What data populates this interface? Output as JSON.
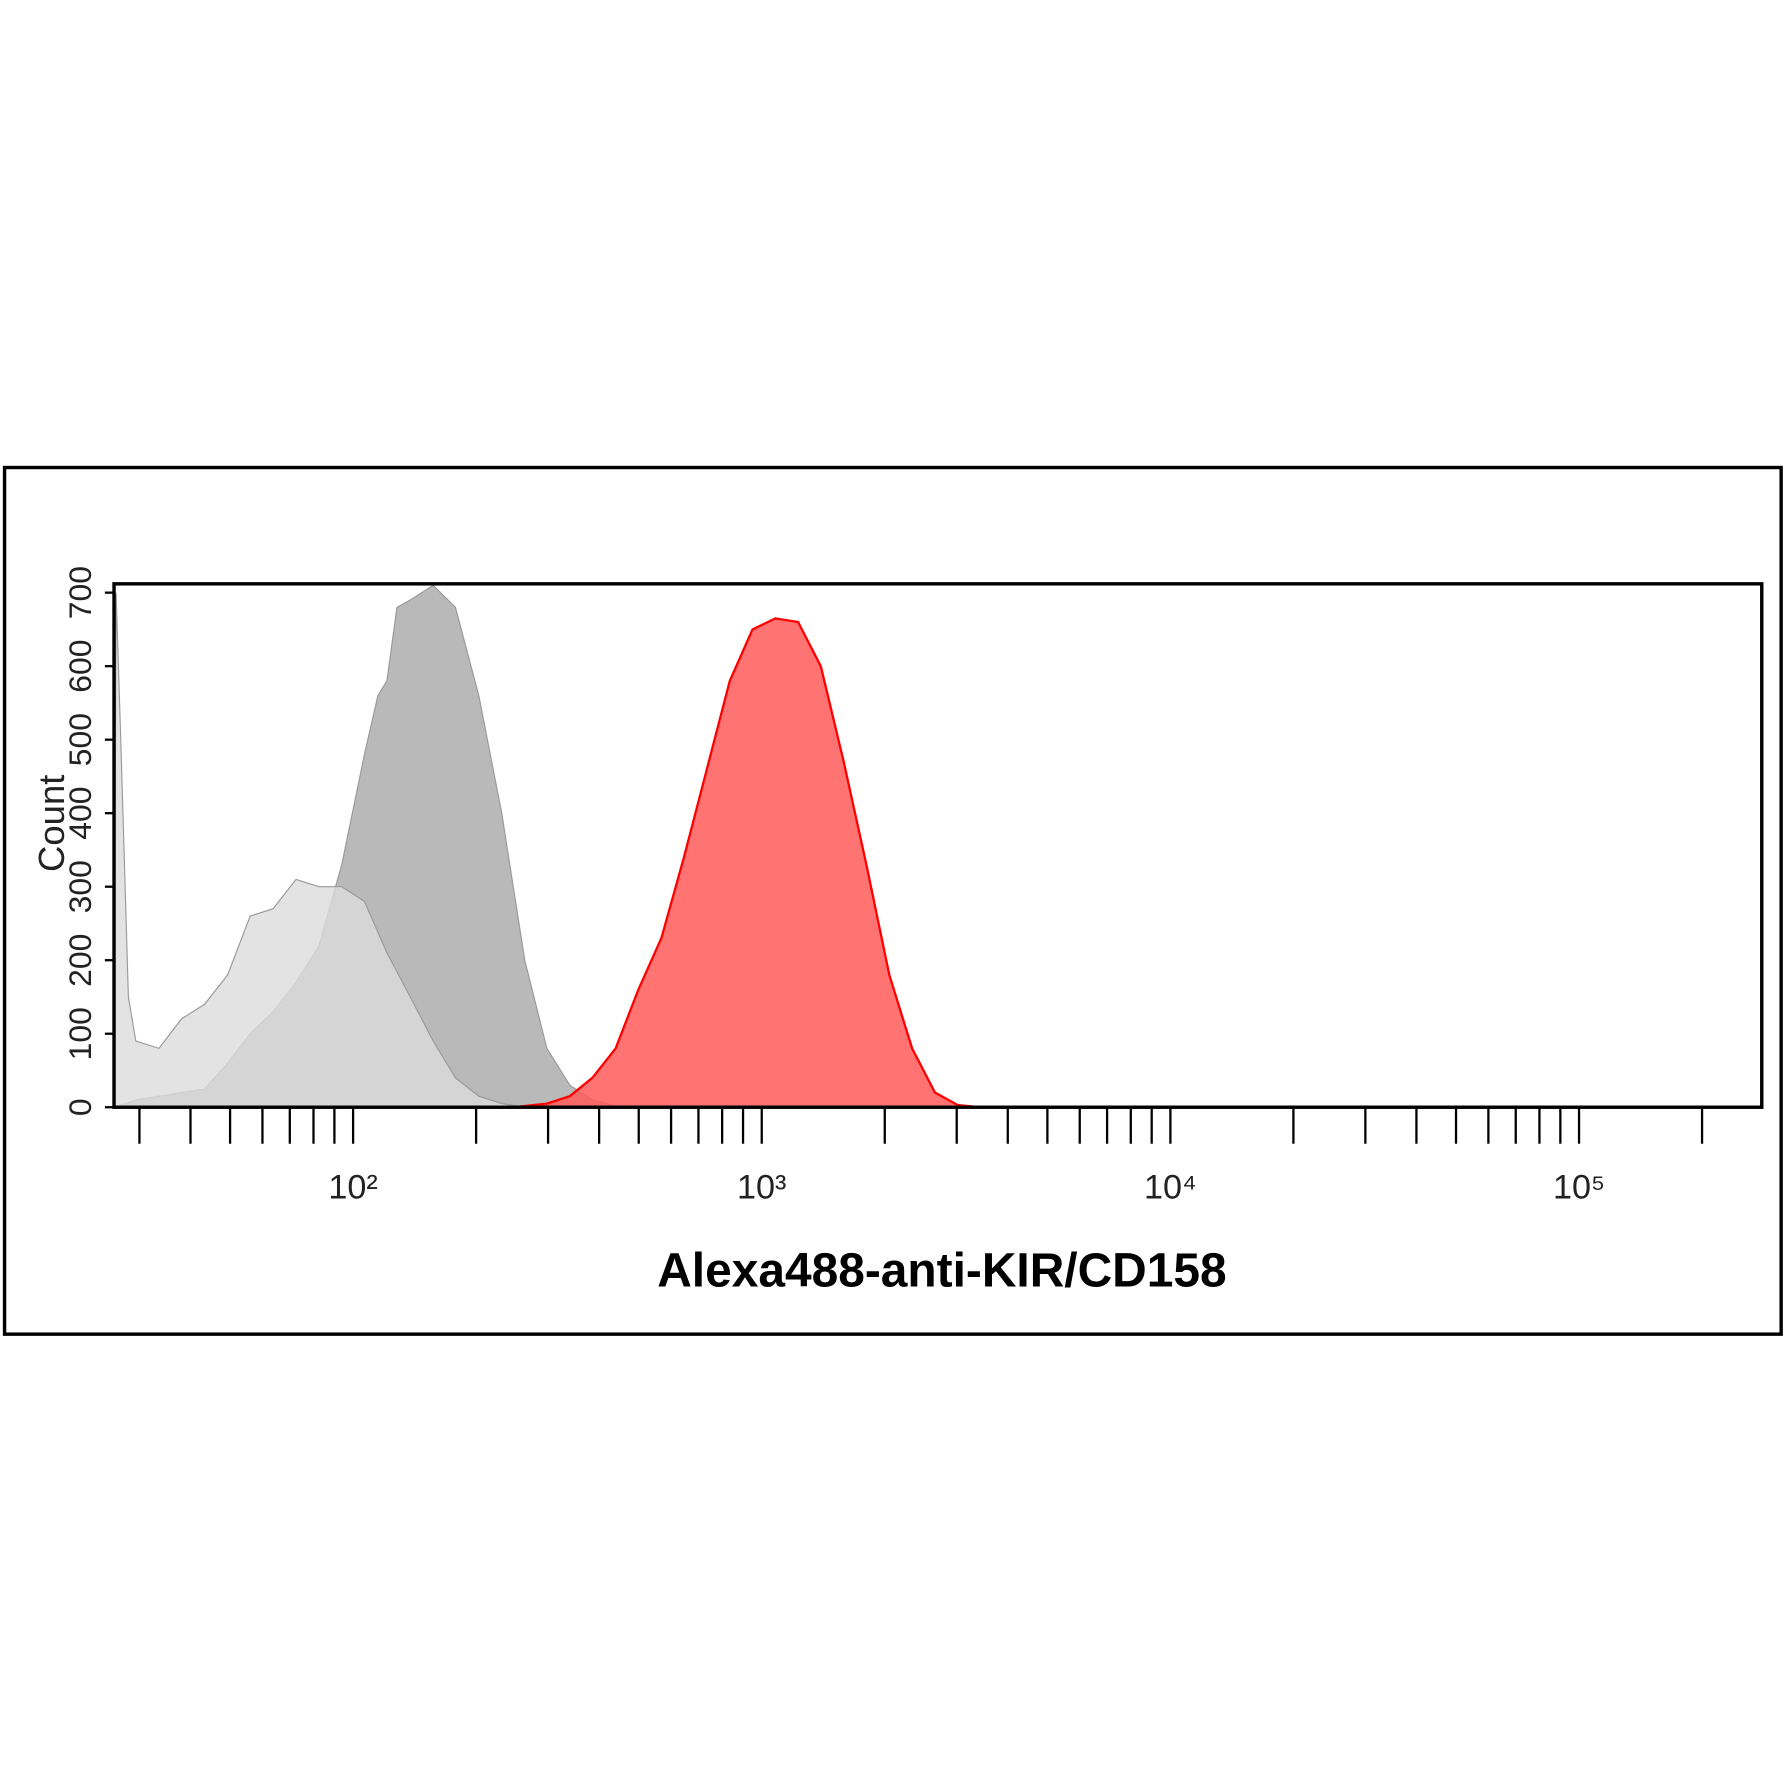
{
  "chart_data": {
    "type": "area",
    "xlabel": "Alexa488-anti-KIR/CD158",
    "ylabel": "Count",
    "xscale": "log",
    "xlim": [
      26,
      280000
    ],
    "ylim": [
      0,
      712
    ],
    "xticks": [
      {
        "value": 100,
        "label": "10²"
      },
      {
        "value": 1000,
        "label": "10³"
      },
      {
        "value": 10000,
        "label": "10⁴"
      },
      {
        "value": 100000,
        "label": "10⁵"
      }
    ],
    "xminorticks": [
      30,
      40,
      50,
      60,
      70,
      80,
      90,
      200,
      300,
      400,
      500,
      600,
      700,
      800,
      900,
      2000,
      3000,
      4000,
      5000,
      6000,
      7000,
      8000,
      9000,
      20000,
      30000,
      40000,
      50000,
      60000,
      70000,
      80000,
      90000,
      200000
    ],
    "yticks": [
      0,
      100,
      200,
      300,
      400,
      500,
      600,
      700
    ],
    "series": [
      {
        "color": "#a8a8a8",
        "x": [
          26,
          29.4,
          33.5,
          38,
          43.3,
          49.3,
          56,
          63.7,
          72.5,
          82.5,
          93.8,
          106.6,
          115,
          121,
          128,
          138,
          157,
          178,
          203,
          231,
          263,
          298,
          339,
          385,
          439,
          499
        ],
        "values": [
          0,
          10,
          15,
          20,
          25,
          60,
          100,
          130,
          170,
          220,
          330,
          480,
          560,
          580,
          680,
          690,
          710,
          680,
          560,
          400,
          200,
          80,
          30,
          10,
          2,
          0
        ]
      },
      {
        "color": "#dcdcdc",
        "x": [
          26,
          26.3,
          27,
          28.2,
          29.4,
          33.5,
          38,
          43.3,
          49.3,
          56,
          63.7,
          72.5,
          82.5,
          93.8,
          106.6,
          121,
          138,
          157,
          178,
          203,
          231,
          263
        ],
        "values": [
          0,
          700,
          500,
          150,
          90,
          80,
          120,
          140,
          180,
          260,
          270,
          310,
          300,
          300,
          280,
          210,
          150,
          90,
          40,
          15,
          5,
          0
        ]
      },
      {
        "color": "#ff0000",
        "x": [
          246,
          298,
          339,
          385,
          439,
          499,
          568,
          645,
          734,
          835,
          949,
          1079,
          1227,
          1395,
          1587,
          1804,
          2052,
          2334,
          2653,
          3017,
          3431
        ],
        "values": [
          0,
          5,
          15,
          40,
          80,
          160,
          230,
          340,
          460,
          580,
          650,
          665,
          660,
          600,
          470,
          330,
          180,
          80,
          20,
          3,
          0
        ]
      }
    ]
  }
}
